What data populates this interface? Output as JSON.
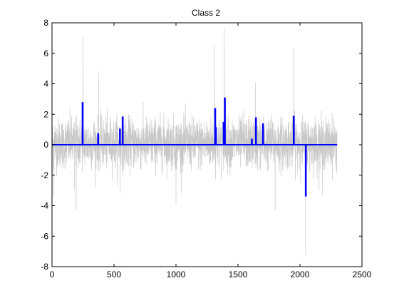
{
  "chart_data": {
    "type": "line",
    "title": "Class 2",
    "xlabel": "",
    "ylabel": "",
    "xlim": [
      0,
      2500
    ],
    "ylim": [
      -8,
      8
    ],
    "xticks": [
      0,
      500,
      1000,
      1500,
      2000,
      2500
    ],
    "yticks": [
      -8,
      -6,
      -4,
      -2,
      0,
      2,
      4,
      6,
      8
    ],
    "grid": false,
    "legend": "none",
    "colors": {
      "signal": "#c8c8c8",
      "spikes": "#0000ff"
    },
    "background_signal": {
      "n_points": 2300,
      "typical_amplitude": 1.5,
      "peaks": [
        {
          "x": 15,
          "y": -3.3
        },
        {
          "x": 145,
          "y": 2.4
        },
        {
          "x": 180,
          "y": -3.0
        },
        {
          "x": 195,
          "y": -4.3
        },
        {
          "x": 250,
          "y": 7.1
        },
        {
          "x": 375,
          "y": 4.8
        },
        {
          "x": 550,
          "y": -3.2
        },
        {
          "x": 1000,
          "y": -4.0
        },
        {
          "x": 1310,
          "y": 6.5
        },
        {
          "x": 1390,
          "y": 7.6
        },
        {
          "x": 1550,
          "y": 2.4
        },
        {
          "x": 1640,
          "y": 4.1
        },
        {
          "x": 1800,
          "y": -4.3
        },
        {
          "x": 1950,
          "y": 6.3
        },
        {
          "x": 2045,
          "y": -7.2
        },
        {
          "x": 2180,
          "y": -3.3
        }
      ]
    },
    "spikes": {
      "x": [
        247,
        372,
        548,
        570,
        1316,
        1322,
        1385,
        1394,
        1612,
        1645,
        1702,
        1950,
        2047
      ],
      "y": [
        2.8,
        0.75,
        1.05,
        1.85,
        2.4,
        1.15,
        1.5,
        3.1,
        0.4,
        1.8,
        1.4,
        1.9,
        -3.4
      ]
    },
    "baseline": {
      "y": 0,
      "x_range": [
        0,
        2300
      ]
    }
  }
}
